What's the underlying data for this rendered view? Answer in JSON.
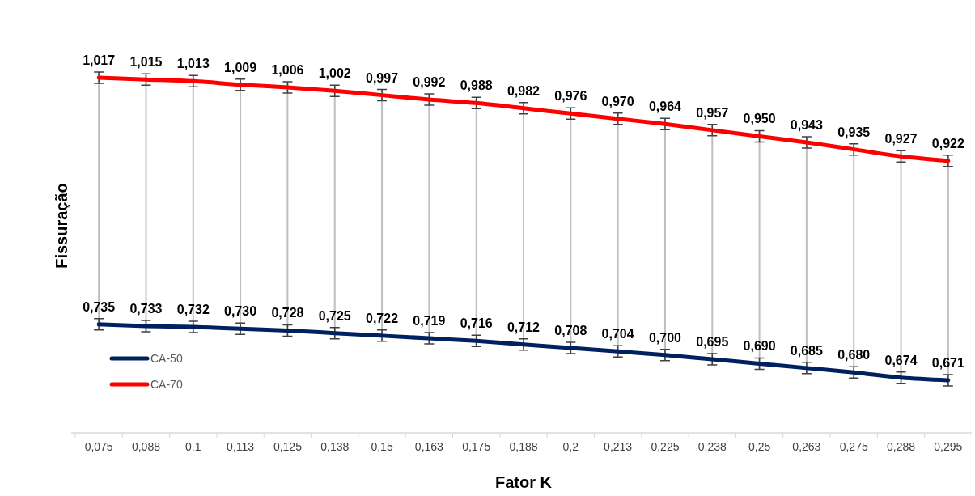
{
  "chart_data": {
    "type": "line",
    "xlabel": "Fator K",
    "ylabel": "Fissuração",
    "categories": [
      "0,075",
      "0,088",
      "0,1",
      "0,113",
      "0,125",
      "0,138",
      "0,15",
      "0,163",
      "0,175",
      "0,188",
      "0,2",
      "0,213",
      "0,225",
      "0,238",
      "0,25",
      "0,263",
      "0,275",
      "0,288",
      "0,295"
    ],
    "tick_labels": "x",
    "grid": "x",
    "legend": "bottom left",
    "marker": "cross",
    "line_style": "solid",
    "series": [
      {
        "name": "CA-50",
        "color": "#002060",
        "values": [
          0.735,
          0.733,
          0.732,
          0.73,
          0.728,
          0.725,
          0.722,
          0.719,
          0.716,
          0.712,
          0.708,
          0.704,
          0.7,
          0.695,
          0.69,
          0.685,
          0.68,
          0.674,
          0.671
        ],
        "value_labels": [
          "0,735",
          "0,733",
          "0,732",
          "0,730",
          "0,728",
          "0,725",
          "0,722",
          "0,719",
          "0,716",
          "0,712",
          "0,708",
          "0,704",
          "0,700",
          "0,695",
          "0,690",
          "0,685",
          "0,680",
          "0,674",
          "0,671"
        ]
      },
      {
        "name": "CA-70",
        "color": "#ff0000",
        "values": [
          1.017,
          1.015,
          1.013,
          1.009,
          1.006,
          1.002,
          0.997,
          0.992,
          0.988,
          0.982,
          0.976,
          0.97,
          0.964,
          0.957,
          0.95,
          0.943,
          0.935,
          0.927,
          0.922
        ],
        "value_labels": [
          "1,017",
          "1,015",
          "1,013",
          "1,009",
          "1,006",
          "1,002",
          "0,997",
          "0,992",
          "0,988",
          "0,982",
          "0,976",
          "0,970",
          "0,964",
          "0,957",
          "0,950",
          "0,943",
          "0,935",
          "0,927",
          "0,922"
        ]
      }
    ]
  }
}
